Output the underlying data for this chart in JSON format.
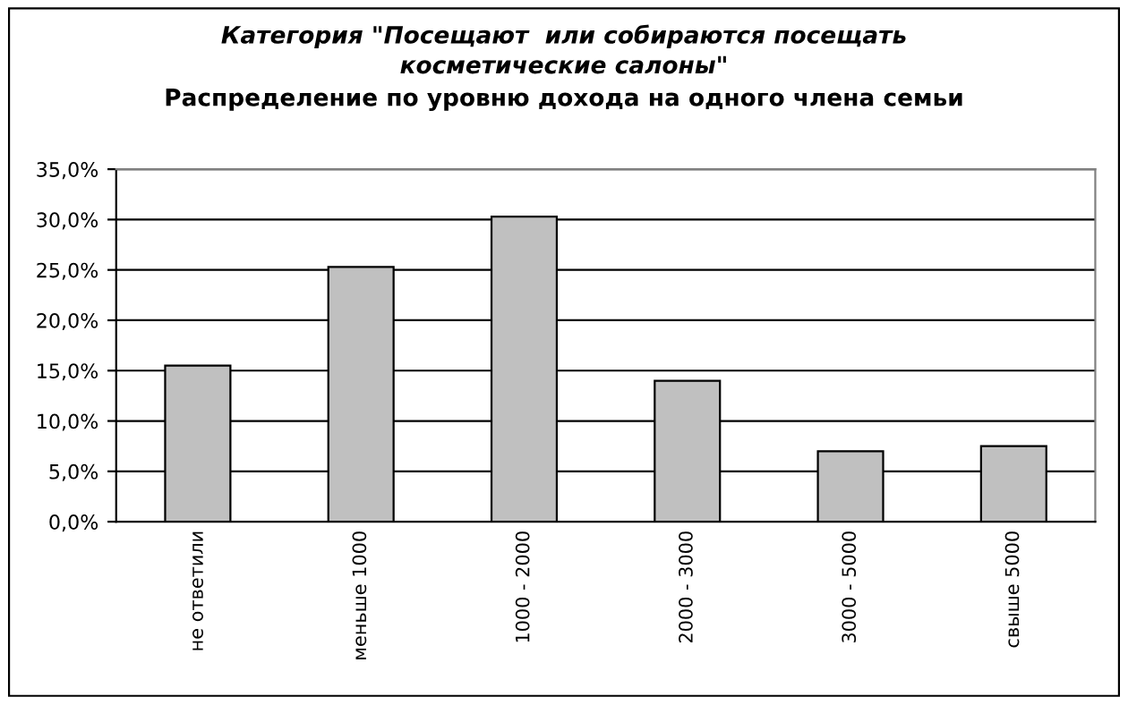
{
  "chart_data": {
    "type": "bar",
    "title": "Категория \"Посещают  или собираются посещать\nкосметические салоны\"",
    "subtitle": "Распределение по уровню дохода на одного члена семьи",
    "categories": [
      "не ответили",
      "меньше 1000",
      "1000 - 2000",
      "2000 - 3000",
      "3000 - 5000",
      "свыше 5000"
    ],
    "values": [
      15.5,
      25.3,
      30.3,
      14.0,
      7.0,
      7.5
    ],
    "color": "#c0c0c0",
    "ylim": [
      0,
      35
    ],
    "yticks": [
      {
        "value": 0,
        "label": "0,0%"
      },
      {
        "value": 5,
        "label": "5,0%"
      },
      {
        "value": 10,
        "label": "10,0%"
      },
      {
        "value": 15,
        "label": "15,0%"
      },
      {
        "value": 20,
        "label": "20,0%"
      },
      {
        "value": 25,
        "label": "25,0%"
      },
      {
        "value": 30,
        "label": "30,0%"
      },
      {
        "value": 35,
        "label": "35,0%"
      }
    ],
    "grid": "y",
    "legend": false
  }
}
